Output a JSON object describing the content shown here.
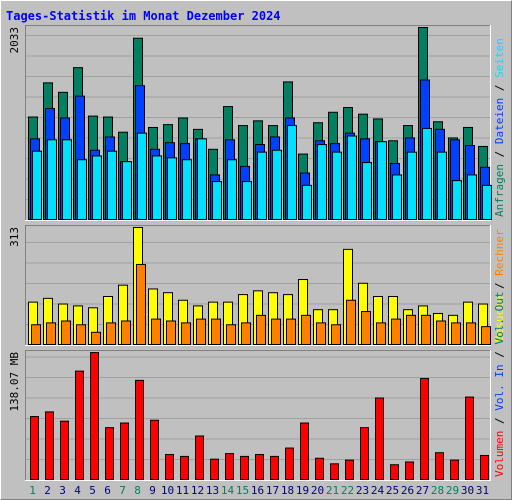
{
  "chart_data": [
    {
      "type": "bar",
      "title": "Tages-Statistik im Monat Dezember 2024",
      "ymax_label": "2033",
      "ylim": [
        0,
        2033
      ],
      "legend": [
        "Anfragen",
        "Dateien",
        "Seiten"
      ],
      "legend_separator": " / ",
      "legend_placement": "right",
      "categories": [
        "1",
        "2",
        "3",
        "4",
        "5",
        "6",
        "7",
        "8",
        "9",
        "10",
        "11",
        "12",
        "13",
        "14",
        "15",
        "16",
        "17",
        "18",
        "19",
        "20",
        "21",
        "22",
        "23",
        "24",
        "25",
        "26",
        "27",
        "28",
        "29",
        "30",
        "31"
      ],
      "weekend_days": [
        1,
        7,
        8,
        14,
        15,
        21,
        22,
        28,
        29
      ],
      "colors": {
        "Anfragen": "#008060",
        "Dateien": "#0040ff",
        "Seiten": "#00e0ff"
      },
      "series": [
        {
          "name": "Anfragen",
          "values": [
            1090,
            1450,
            1350,
            1610,
            1100,
            1090,
            930,
            1920,
            980,
            1010,
            1080,
            960,
            750,
            1200,
            1000,
            1050,
            1000,
            1460,
            700,
            1030,
            1140,
            1190,
            1120,
            1070,
            840,
            1000,
            2033,
            1040,
            870,
            980,
            780
          ]
        },
        {
          "name": "Dateien",
          "values": [
            860,
            1180,
            1080,
            1310,
            740,
            880,
            620,
            1420,
            750,
            820,
            810,
            860,
            480,
            850,
            570,
            800,
            880,
            1080,
            500,
            840,
            810,
            920,
            860,
            830,
            600,
            870,
            1480,
            960,
            850,
            790,
            560
          ]
        },
        {
          "name": "Seiten",
          "values": [
            730,
            850,
            850,
            640,
            680,
            730,
            620,
            920,
            680,
            660,
            640,
            860,
            410,
            640,
            410,
            720,
            740,
            1000,
            370,
            800,
            720,
            890,
            610,
            830,
            480,
            720,
            970,
            720,
            420,
            480,
            370
          ]
        }
      ]
    },
    {
      "type": "bar",
      "ymax_label": "313",
      "ylim": [
        0,
        313
      ],
      "legend": [
        "Besuche",
        "Rechner"
      ],
      "legend_separator": " / ",
      "legend_placement": "right",
      "categories": [
        "1",
        "2",
        "3",
        "4",
        "5",
        "6",
        "7",
        "8",
        "9",
        "10",
        "11",
        "12",
        "13",
        "14",
        "15",
        "16",
        "17",
        "18",
        "19",
        "20",
        "21",
        "22",
        "23",
        "24",
        "25",
        "26",
        "27",
        "28",
        "29",
        "30",
        "31"
      ],
      "colors": {
        "Besuche": "#ffff00",
        "Rechner": "#ff8000"
      },
      "series": [
        {
          "name": "Besuche",
          "values": [
            115,
            125,
            110,
            105,
            100,
            130,
            160,
            313,
            150,
            140,
            120,
            105,
            115,
            115,
            135,
            145,
            140,
            135,
            175,
            95,
            95,
            255,
            165,
            130,
            130,
            95,
            105,
            85,
            80,
            115,
            110
          ]
        },
        {
          "name": "Rechner",
          "values": [
            55,
            60,
            65,
            55,
            35,
            60,
            65,
            215,
            70,
            65,
            60,
            70,
            70,
            55,
            60,
            80,
            70,
            70,
            80,
            60,
            55,
            120,
            90,
            60,
            70,
            80,
            80,
            65,
            60,
            60,
            50
          ]
        }
      ]
    },
    {
      "type": "bar",
      "ymax_label": "138.07 MB",
      "ylim": [
        0,
        138.07
      ],
      "legend": [
        "Volumen",
        "Vol. In",
        "Vol. Out"
      ],
      "legend_separator": " / ",
      "legend_placement": "right",
      "categories": [
        "1",
        "2",
        "3",
        "4",
        "5",
        "6",
        "7",
        "8",
        "9",
        "10",
        "11",
        "12",
        "13",
        "14",
        "15",
        "16",
        "17",
        "18",
        "19",
        "20",
        "21",
        "22",
        "23",
        "24",
        "25",
        "26",
        "27",
        "28",
        "29",
        "30",
        "31"
      ],
      "colors": {
        "Volumen": "#ff0000",
        "Vol. In": "#0040ff",
        "Vol. Out": "#008060"
      },
      "series": [
        {
          "name": "Volumen",
          "values": [
            69,
            74,
            64,
            118,
            138,
            57,
            62,
            108,
            65,
            28,
            26,
            48,
            23,
            29,
            26,
            28,
            26,
            35,
            62,
            24,
            18,
            22,
            57,
            89,
            17,
            20,
            110,
            30,
            22,
            90,
            27
          ]
        }
      ]
    }
  ]
}
